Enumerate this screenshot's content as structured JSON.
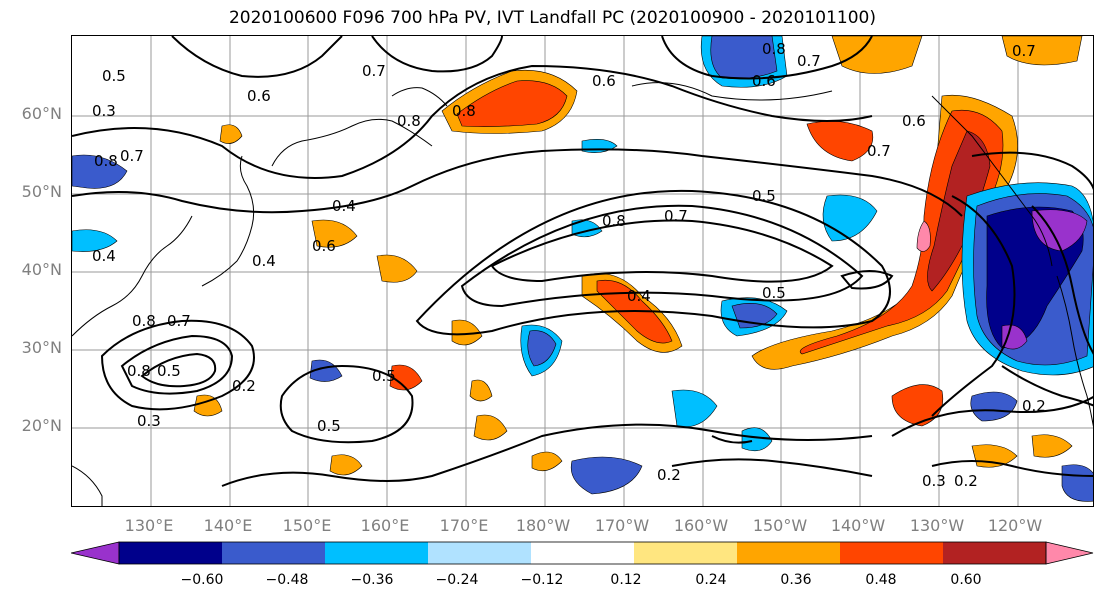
{
  "title": "2020100600 F096 700 hPa PV, IVT Landfall PC (2020100900 - 2020101100)",
  "lat_labels": [
    "60°N",
    "50°N",
    "40°N",
    "30°N",
    "20°N"
  ],
  "lon_labels": [
    "130°E",
    "140°E",
    "150°E",
    "160°E",
    "170°E",
    "180°W",
    "170°W",
    "160°W",
    "150°W",
    "140°W",
    "130°W",
    "120°W"
  ],
  "contour_labels": [
    "0.5",
    "0.7",
    "0.8",
    "0.6",
    "0.8",
    "0.7",
    "0.6",
    "0.8",
    "0.7",
    "0.6",
    "0.8",
    "0.7",
    "0.6",
    "0.7",
    "0.8",
    "0.7",
    "0.5",
    "0.4",
    "0.4",
    "0.6",
    "0.8",
    "0.7",
    "0.5",
    "0.4",
    "0.5",
    "0.2",
    "0.5",
    "0.4",
    "0.3",
    "0.2",
    "0.2",
    "0.3",
    "0.2",
    "0.8",
    "0.3",
    "0.5"
  ],
  "colorbar": {
    "ticks": [
      "−0.60",
      "−0.48",
      "−0.36",
      "−0.24",
      "−0.12",
      "0.12",
      "0.24",
      "0.36",
      "0.48",
      "0.60"
    ],
    "colors": [
      "#9932cc",
      "#00008b",
      "#3a5bcc",
      "#00bfff",
      "#b0e2ff",
      "#ffffff",
      "#ffe680",
      "#ffa500",
      "#ff4500",
      "#b22222",
      "#ff88aa"
    ],
    "extend": "both"
  }
}
